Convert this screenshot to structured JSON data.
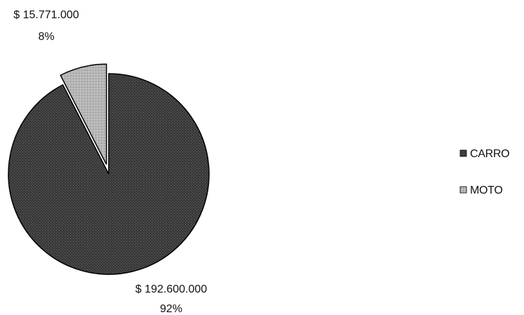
{
  "chart_data": {
    "type": "pie",
    "title": "",
    "categories": [
      "CARRO",
      "MOTO"
    ],
    "values": [
      192600000,
      15771000
    ],
    "value_labels": [
      "$ 192.600.000",
      "$ 15.771.000"
    ],
    "percent_labels": [
      "92%",
      "8%"
    ],
    "exploded": [
      "",
      "MOTO"
    ],
    "colors": [
      "#3d3d3d",
      "#b5b5b5"
    ],
    "legend": {
      "position": "right",
      "entries": [
        "CARRO",
        "MOTO"
      ]
    }
  }
}
